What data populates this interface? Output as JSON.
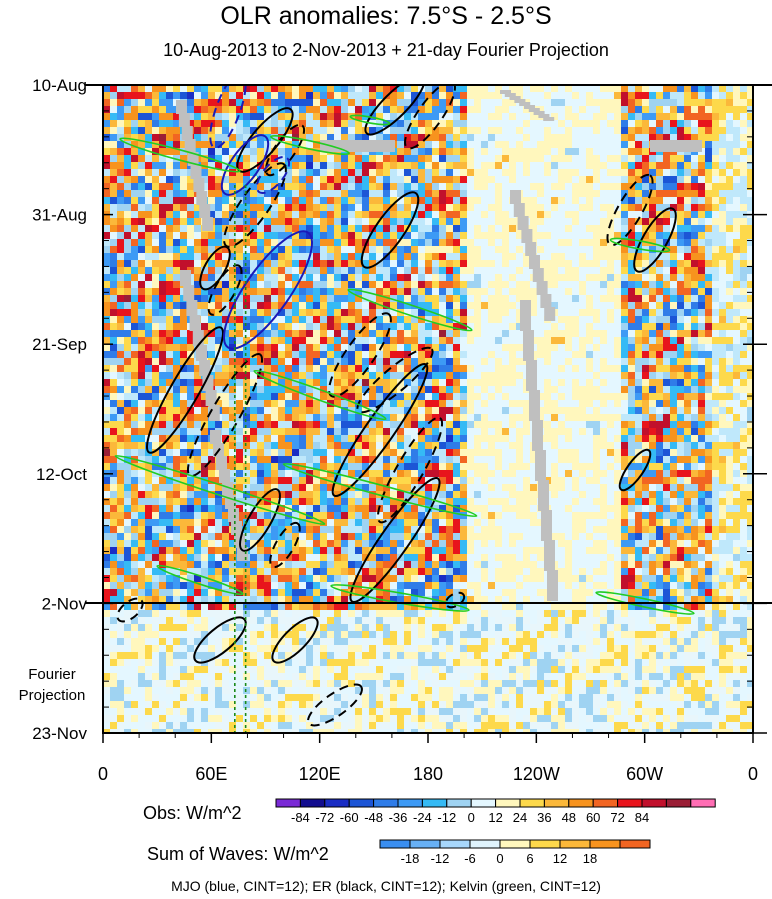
{
  "title": "OLR anomalies: 7.5°S - 2.5°S",
  "subtitle": "10-Aug-2013 to 2-Nov-2013 + 21-day Fourier Projection",
  "footer": "MJO (blue, CINT=12); ER (black, CINT=12); Kelvin (green, CINT=12)",
  "projection_label": [
    "Fourier",
    "Projection"
  ],
  "colors": {
    "positive": [
      "#fff7bd",
      "#fdd94b",
      "#fbb83a",
      "#f7931e",
      "#f26522",
      "#e8141c",
      "#c1102c",
      "#9a1e36",
      "#ff6eb4"
    ],
    "negative": [
      "#e4f7ff",
      "#bfe8fb",
      "#9fd3f2",
      "#35baf5",
      "#3d9af5",
      "#2f7ce8",
      "#1c55d6",
      "#1a2dc4",
      "#120d8f",
      "#7a2ad6"
    ],
    "sum_of_waves": [
      "#3a8ef0",
      "#67b0f5",
      "#a7d7fb",
      "#dff3fc",
      "#fff7bd",
      "#fdd94b",
      "#fbb83a",
      "#f7931e",
      "#f26522"
    ],
    "mjo": "#1a1ab8",
    "er": "#000000",
    "kelvin": "#22cc22",
    "missing": "#bfbfbf"
  },
  "chart_data": {
    "type": "heatmap",
    "title": "OLR anomalies: 7.5°S - 2.5°S",
    "subtitle": "10-Aug-2013 to 2-Nov-2013 + 21-day Fourier Projection",
    "x_axis": {
      "ticks": [
        "0",
        "60E",
        "120E",
        "180",
        "120W",
        "60W",
        "0"
      ],
      "range_deg": [
        0,
        360
      ]
    },
    "y_axis": {
      "ticks": [
        "10-Aug",
        "31-Aug",
        "21-Sep",
        "12-Oct",
        "2-Nov",
        "23-Nov"
      ],
      "reversed": true
    },
    "observation_end": "2-Nov",
    "colorbars": [
      {
        "label": "Obs: W/m^2",
        "levels": [
          -84,
          -72,
          -60,
          -48,
          -36,
          -24,
          -12,
          0,
          12,
          24,
          36,
          48,
          60,
          72,
          84
        ]
      },
      {
        "label": "Sum of Waves: W/m^2",
        "levels": [
          -18,
          -12,
          -6,
          0,
          6,
          12,
          18
        ]
      }
    ],
    "contours": [
      {
        "name": "MJO",
        "color": "blue",
        "cint": 12
      },
      {
        "name": "ER",
        "color": "black",
        "cint": 12
      },
      {
        "name": "Kelvin",
        "color": "green",
        "cint": 12
      }
    ],
    "reference_lines_deg": [
      73,
      79
    ]
  }
}
